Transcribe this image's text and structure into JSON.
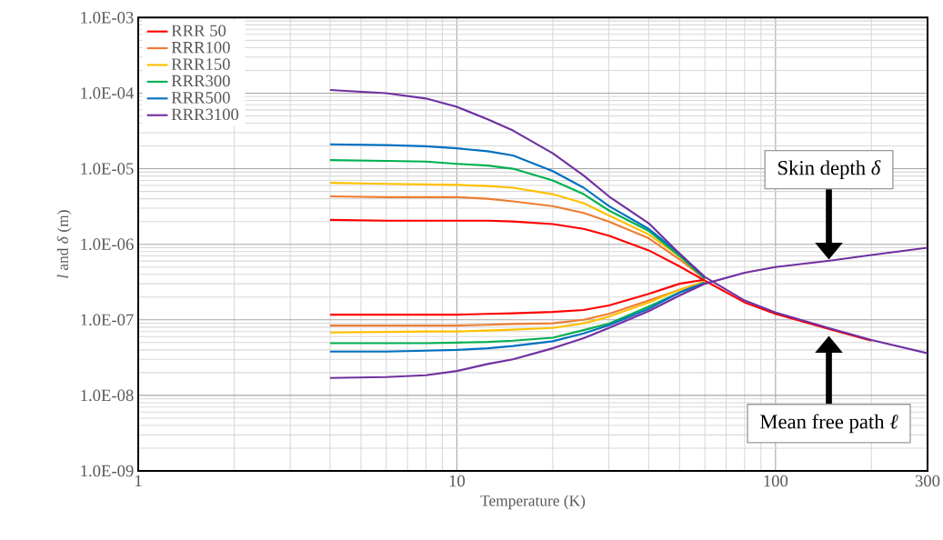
{
  "chart_data": {
    "type": "line",
    "xlabel": "Temperature (K)",
    "ylabel": "*l* and *δ* (m)",
    "log": "xy",
    "grid": true,
    "legend": "top left",
    "xlim": [
      1,
      300
    ],
    "ylim": [
      1e-09,
      0.001
    ],
    "xticks": [
      1,
      10,
      100,
      300
    ],
    "yticks": [
      {
        "value": 1e-09,
        "label": "1.0E-09"
      },
      {
        "value": 1e-08,
        "label": "1.0E-08"
      },
      {
        "value": 1e-07,
        "label": "1.0E-07"
      },
      {
        "value": 1e-06,
        "label": "1.0E-06"
      },
      {
        "value": 1e-05,
        "label": "1.0E-05"
      },
      {
        "value": 0.0001,
        "label": "1.0E-04"
      },
      {
        "value": 0.001,
        "label": "1.0E-03"
      }
    ],
    "series": [
      {
        "name": "RRR 50",
        "color": "#ff0000",
        "x": [
          4,
          6,
          8,
          10,
          12.5,
          15,
          20,
          25,
          30,
          40,
          50,
          60,
          80,
          100,
          150,
          200
        ],
        "values": [
          2.1e-06,
          2.05e-06,
          2.05e-06,
          2.05e-06,
          2.05e-06,
          2e-06,
          1.85e-06,
          1.6e-06,
          1.3e-06,
          8.3e-07,
          5.1e-07,
          3.3e-07,
          1.7e-07,
          1.2e-07,
          7.4e-08,
          5.3e-08
        ]
      },
      {
        "name": "RRR100",
        "color": "#ed7d31",
        "x": [
          4,
          6,
          8,
          10,
          12.5,
          15,
          20,
          25,
          30,
          40,
          50,
          60
        ],
        "values": [
          4.3e-06,
          4.2e-06,
          4.2e-06,
          4.2e-06,
          4e-06,
          3.7e-06,
          3.2e-06,
          2.6e-06,
          2e-06,
          1.2e-06,
          6.3e-07,
          3.5e-07
        ]
      },
      {
        "name": "RRR150",
        "color": "#ffc000",
        "x": [
          4,
          6,
          8,
          10,
          12.5,
          15,
          20,
          25,
          30,
          40,
          50,
          60
        ],
        "values": [
          6.5e-06,
          6.3e-06,
          6.2e-06,
          6.1e-06,
          5.9e-06,
          5.6e-06,
          4.6e-06,
          3.5e-06,
          2.4e-06,
          1.35e-06,
          6.9e-07,
          3.5e-07
        ]
      },
      {
        "name": "RRR300",
        "color": "#00b050",
        "x": [
          4,
          6,
          8,
          10,
          12.5,
          15,
          20,
          25,
          30,
          40,
          50,
          60
        ],
        "values": [
          1.3e-05,
          1.27e-05,
          1.24e-05,
          1.16e-05,
          1.1e-05,
          1e-05,
          7e-06,
          4.6e-06,
          2.8e-06,
          1.5e-06,
          7e-07,
          3.5e-07
        ]
      },
      {
        "name": "RRR500",
        "color": "#0070c0",
        "x": [
          4,
          6,
          8,
          10,
          12.5,
          15,
          20,
          25,
          30,
          40,
          50,
          60
        ],
        "values": [
          2.1e-05,
          2.05e-05,
          1.98e-05,
          1.86e-05,
          1.7e-05,
          1.5e-05,
          9.3e-06,
          5.6e-06,
          3.2e-06,
          1.6e-06,
          7.5e-07,
          3.6e-07
        ]
      },
      {
        "name": "RRR3100",
        "color": "#7030a0",
        "x": [
          4,
          6,
          8,
          10,
          12.5,
          15,
          20,
          25,
          30,
          40,
          50,
          60,
          80,
          100,
          150,
          200,
          300
        ],
        "values": [
          0.00011,
          0.0001,
          8.5e-05,
          6.6e-05,
          4.5e-05,
          3.2e-05,
          1.6e-05,
          8.1e-06,
          4.3e-06,
          1.9e-06,
          7.5e-07,
          3.7e-07,
          1.8e-07,
          1.25e-07,
          7.6e-08,
          5.4e-08,
          3.6e-08
        ]
      },
      {
        "color": "#ff0000",
        "x": [
          4,
          6,
          8,
          10,
          12.5,
          15,
          20,
          25,
          30,
          40,
          50,
          60
        ],
        "values": [
          1.17e-07,
          1.17e-07,
          1.17e-07,
          1.17e-07,
          1.2e-07,
          1.22e-07,
          1.27e-07,
          1.35e-07,
          1.55e-07,
          2.2e-07,
          3e-07,
          3.4e-07
        ]
      },
      {
        "color": "#ed7d31",
        "x": [
          4,
          6,
          8,
          10,
          12.5,
          15,
          20,
          25,
          30,
          40,
          50,
          60
        ],
        "values": [
          8.4e-08,
          8.4e-08,
          8.4e-08,
          8.4e-08,
          8.6e-08,
          8.8e-08,
          9e-08,
          1e-07,
          1.2e-07,
          1.8e-07,
          2.5e-07,
          3.2e-07
        ]
      },
      {
        "color": "#ffc000",
        "x": [
          4,
          6,
          8,
          10,
          12.5,
          15,
          20,
          25,
          30,
          40,
          50,
          60
        ],
        "values": [
          6.8e-08,
          6.9e-08,
          7e-08,
          7e-08,
          7.2e-08,
          7.4e-08,
          7.8e-08,
          9e-08,
          1.1e-07,
          1.7e-07,
          2.5e-07,
          3.2e-07
        ]
      },
      {
        "color": "#00b050",
        "x": [
          4,
          6,
          8,
          10,
          12.5,
          15,
          20,
          25,
          30,
          40,
          50,
          60
        ],
        "values": [
          4.9e-08,
          4.9e-08,
          4.9e-08,
          5e-08,
          5.1e-08,
          5.3e-08,
          5.8e-08,
          7.3e-08,
          8.9e-08,
          1.5e-07,
          2.3e-07,
          3.1e-07
        ]
      },
      {
        "color": "#0070c0",
        "x": [
          4,
          6,
          8,
          10,
          12.5,
          15,
          20,
          25,
          30,
          40,
          50,
          60
        ],
        "values": [
          3.8e-08,
          3.8e-08,
          3.9e-08,
          4e-08,
          4.2e-08,
          4.5e-08,
          5.2e-08,
          6.6e-08,
          8.5e-08,
          1.4e-07,
          2.3e-07,
          3.1e-07
        ]
      },
      {
        "color": "#7030a0",
        "x": [
          4,
          6,
          8,
          10,
          12.5,
          15,
          20,
          25,
          30,
          40,
          50,
          60,
          80,
          100,
          150,
          200,
          300
        ],
        "values": [
          1.7e-08,
          1.75e-08,
          1.85e-08,
          2.1e-08,
          2.6e-08,
          3e-08,
          4.2e-08,
          5.7e-08,
          7.8e-08,
          1.3e-07,
          2.1e-07,
          3e-07,
          4.2e-07,
          5e-07,
          6.1e-07,
          7.2e-07,
          9e-07
        ]
      }
    ],
    "annotations": [
      "Skin depth *δ*",
      "Mean free path *ℓ*"
    ]
  }
}
